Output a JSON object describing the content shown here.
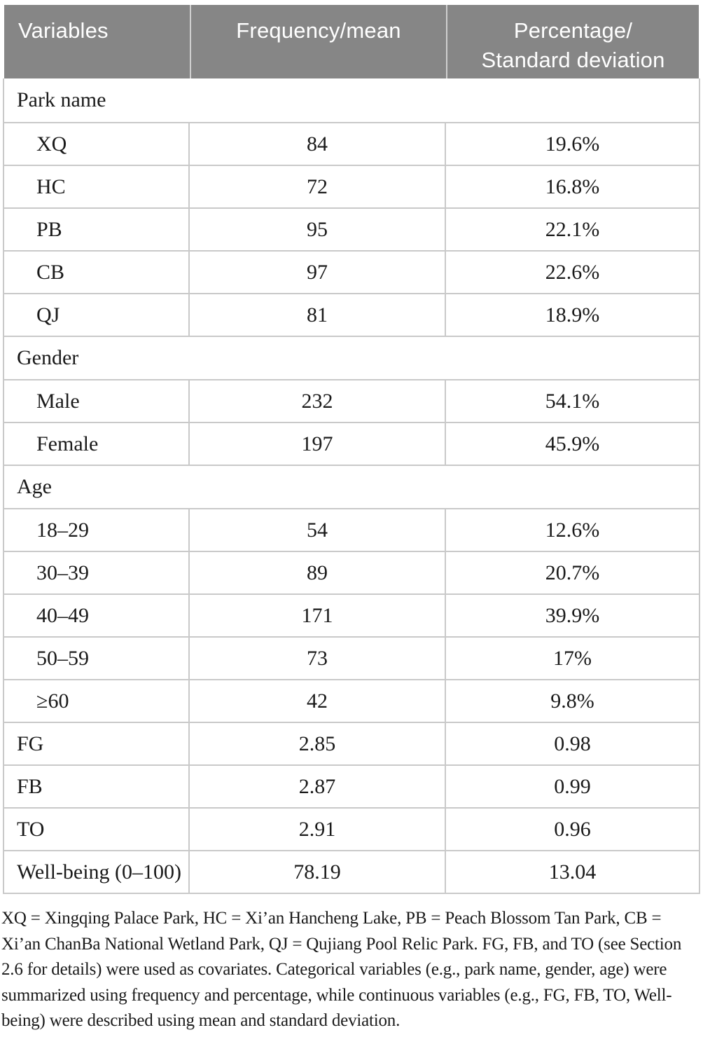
{
  "colors": {
    "header_bg": "#868686",
    "header_text": "#ffffff",
    "row_border": "#c9c9c9",
    "body_text": "#1a1a1a"
  },
  "table": {
    "columns": [
      "Variables",
      "Frequency/mean",
      {
        "lines": [
          "Percentage/",
          "Standard deviation"
        ]
      }
    ],
    "rows": [
      {
        "type": "section",
        "label": "Park name"
      },
      {
        "type": "data",
        "indent": true,
        "label": "XQ",
        "frequency": "84",
        "percentage": "19.6%"
      },
      {
        "type": "data",
        "indent": true,
        "label": "HC",
        "frequency": "72",
        "percentage": "16.8%"
      },
      {
        "type": "data",
        "indent": true,
        "label": "PB",
        "frequency": "95",
        "percentage": "22.1%"
      },
      {
        "type": "data",
        "indent": true,
        "label": "CB",
        "frequency": "97",
        "percentage": "22.6%"
      },
      {
        "type": "data",
        "indent": true,
        "label": "QJ",
        "frequency": "81",
        "percentage": "18.9%"
      },
      {
        "type": "section",
        "label": "Gender"
      },
      {
        "type": "data",
        "indent": true,
        "label": "Male",
        "frequency": "232",
        "percentage": "54.1%"
      },
      {
        "type": "data",
        "indent": true,
        "label": "Female",
        "frequency": "197",
        "percentage": "45.9%"
      },
      {
        "type": "section",
        "label": "Age"
      },
      {
        "type": "data",
        "indent": true,
        "label": "18–29",
        "frequency": "54",
        "percentage": "12.6%"
      },
      {
        "type": "data",
        "indent": true,
        "label": "30–39",
        "frequency": "89",
        "percentage": "20.7%"
      },
      {
        "type": "data",
        "indent": true,
        "label": "40–49",
        "frequency": "171",
        "percentage": "39.9%"
      },
      {
        "type": "data",
        "indent": true,
        "label": "50–59",
        "frequency": "73",
        "percentage": "17%"
      },
      {
        "type": "data",
        "indent": true,
        "label": "≥60",
        "frequency": "42",
        "percentage": "9.8%"
      },
      {
        "type": "data",
        "indent": false,
        "label": "FG",
        "frequency": "2.85",
        "percentage": "0.98"
      },
      {
        "type": "data",
        "indent": false,
        "label": "FB",
        "frequency": "2.87",
        "percentage": "0.99"
      },
      {
        "type": "data",
        "indent": false,
        "label": "TO",
        "frequency": "2.91",
        "percentage": "0.96"
      },
      {
        "type": "data",
        "indent": false,
        "label": "Well-being (0–100)",
        "frequency": "78.19",
        "percentage": "13.04"
      }
    ]
  },
  "footnote": "XQ = Xingqing Palace Park, HC = Xi’an Hancheng Lake, PB = Peach Blossom Tan Park, CB = Xi’an ChanBa National Wetland Park, QJ = Qujiang Pool Relic Park. FG, FB, and TO (see Section 2.6 for details) were used as covariates. Categorical variables (e.g., park name, gender, age) were summarized using frequency and percentage, while continuous variables (e.g., FG, FB, TO, Well-being) were described using mean and standard deviation."
}
